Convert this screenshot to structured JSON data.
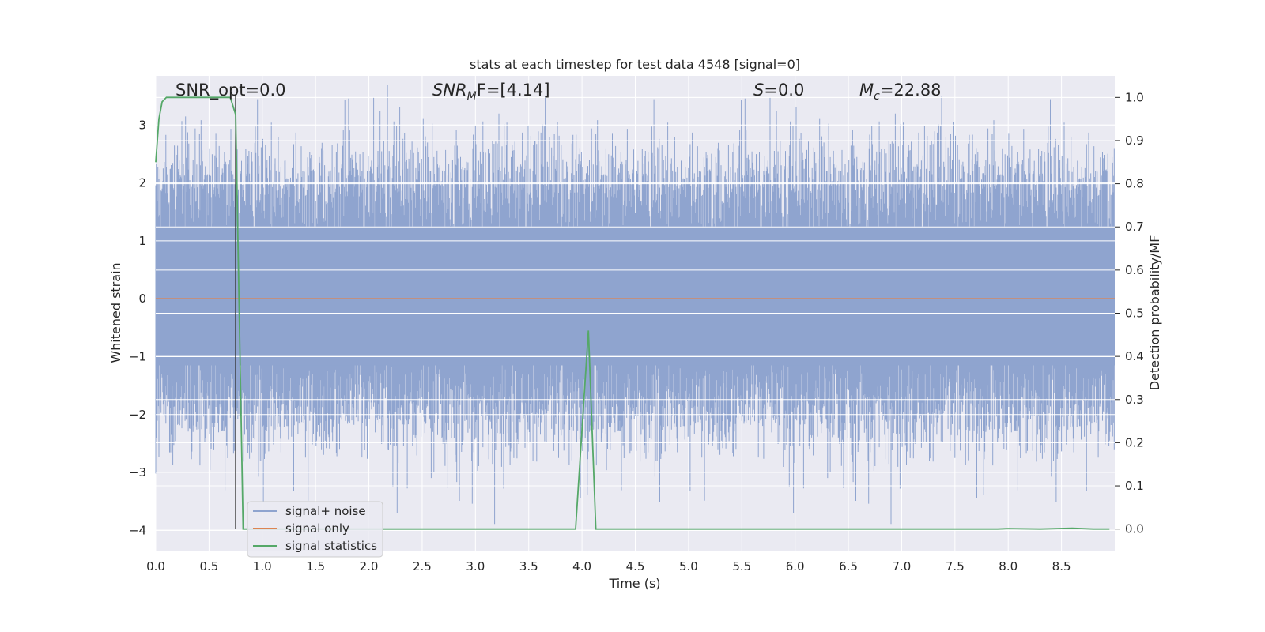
{
  "chart_data": {
    "type": "line",
    "title": "stats at each timestep for test data 4548 [signal=0]",
    "xlabel": "Time (s)",
    "ylabel": "Whitened strain",
    "y2label": "Detection probability/MF",
    "xlim": [
      0,
      9.0
    ],
    "ylim": [
      -4.35,
      3.85
    ],
    "y2lim": [
      -0.05,
      1.05
    ],
    "x_ticks": [
      "0.0",
      "0.5",
      "1.0",
      "1.5",
      "2.0",
      "2.5",
      "3.0",
      "3.5",
      "4.0",
      "4.5",
      "5.0",
      "5.5",
      "6.0",
      "6.5",
      "7.0",
      "7.5",
      "8.0",
      "8.5"
    ],
    "y_ticks": [
      "3",
      "2",
      "1",
      "0",
      "−1",
      "−2",
      "−3",
      "−4"
    ],
    "y2_ticks": [
      "1.0",
      "0.9",
      "0.8",
      "0.7",
      "0.6",
      "0.5",
      "0.4",
      "0.3",
      "0.2",
      "0.1",
      "0.0"
    ],
    "grid": true,
    "legend_position": "lower-left",
    "colors": {
      "signal_noise": "#8fa4cf",
      "signal_only": "#dd8452",
      "signal_statistics": "#55a868",
      "background": "#eaeaf2",
      "grid": "#ffffff",
      "marker_line": "#333333"
    },
    "annotations": {
      "snr_opt": "SNR_opt=0.0",
      "snr_mf_main": "SNR",
      "snr_mf_sub": "M",
      "snr_mf_rest": "F=[4.14]",
      "s_main": "S",
      "s_rest": "=0.0",
      "mc_main": "M",
      "mc_sub": "c",
      "mc_rest": "=22.88"
    },
    "marker_x": 0.75,
    "series": [
      {
        "name": "signal+ noise",
        "axis": "left",
        "style": "noise band",
        "duration_s": 9.0,
        "typical_range": [
          -1.9,
          2.0
        ],
        "max": 3.7,
        "min": -4.0
      },
      {
        "name": "signal only",
        "axis": "left",
        "x": [
          0,
          9.0
        ],
        "y": [
          0,
          0
        ]
      },
      {
        "name": "signal statistics",
        "axis": "right",
        "x": [
          0.0,
          0.03,
          0.06,
          0.1,
          0.2,
          0.4,
          0.6,
          0.65,
          0.7,
          0.75,
          0.82,
          1.0,
          2.0,
          3.0,
          3.94,
          4.06,
          4.13,
          5.0,
          6.0,
          7.0,
          7.9,
          8.0,
          8.3,
          8.6,
          8.8,
          8.95
        ],
        "y": [
          0.85,
          0.95,
          0.99,
          1.0,
          1.0,
          1.0,
          1.0,
          1.0,
          1.0,
          0.96,
          0.0,
          0.0,
          0.0,
          0.0,
          0.0,
          0.46,
          0.0,
          0.0,
          0.0,
          0.0,
          0.0,
          0.001,
          0.0,
          0.002,
          0.0,
          0.0
        ]
      }
    ]
  }
}
